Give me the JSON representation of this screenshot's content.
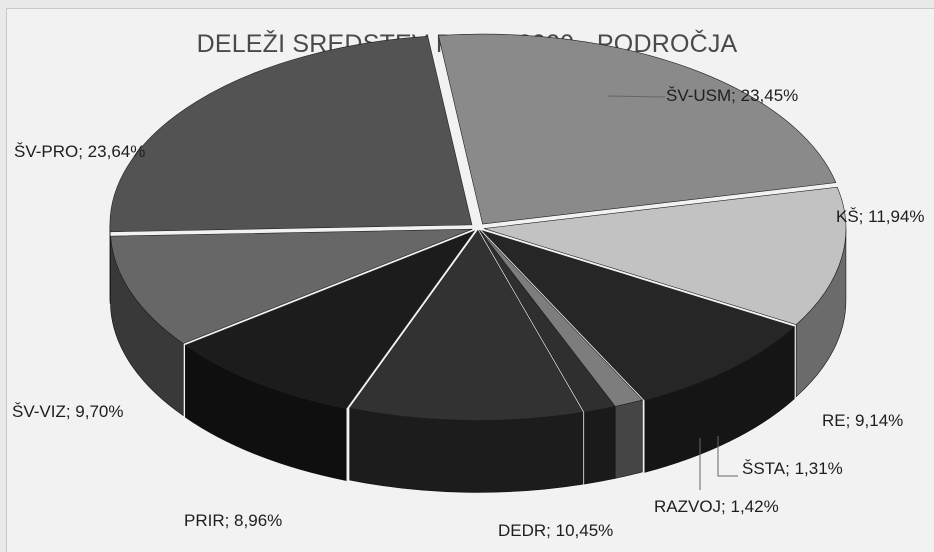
{
  "chart_data": {
    "type": "pie",
    "title": "DELEŽI SREDSTEV PO JR 2020 - PODROČJA",
    "labels": [
      "ŠV-USM; 23,45%",
      "KŠ; 11,94%",
      "RE; 9,14%",
      "ŠSTA; 1,31%",
      "RAZVOJ; 1,42%",
      "DEDR; 10,45%",
      "PRIR; 8,96%",
      "ŠV-VIZ; 9,70%",
      "ŠV-PRO; 23,64%"
    ],
    "slices": [
      {
        "name": "ŠV-USM",
        "value": 23.45,
        "color": "#8a8a8a"
      },
      {
        "name": "KŠ",
        "value": 11.94,
        "color": "#c2c2c2"
      },
      {
        "name": "RE",
        "value": 9.14,
        "color": "#262626"
      },
      {
        "name": "ŠSTA",
        "value": 1.31,
        "color": "#7d7d7d"
      },
      {
        "name": "RAZVOJ",
        "value": 1.42,
        "color": "#2f2f2f"
      },
      {
        "name": "DEDR",
        "value": 10.45,
        "color": "#323232"
      },
      {
        "name": "PRIR",
        "value": 8.96,
        "color": "#1c1c1c"
      },
      {
        "name": "ŠV-VIZ",
        "value": 9.7,
        "color": "#676767"
      },
      {
        "name": "ŠV-PRO",
        "value": 23.64,
        "color": "#535353"
      }
    ],
    "legend": "none",
    "style": "3d-exploded-perspective"
  }
}
